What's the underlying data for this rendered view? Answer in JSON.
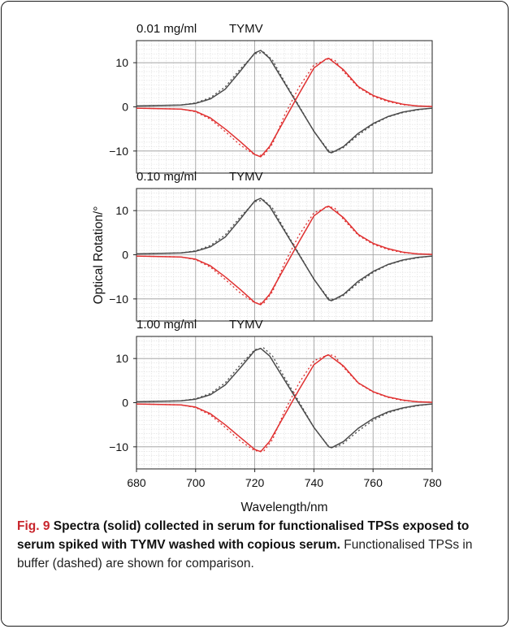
{
  "chart_data": {
    "type": "line",
    "ylabel": "Optical Rotation/°",
    "xlabel": "Wavelength/nm",
    "xlim": [
      680,
      780
    ],
    "xticks": [
      680,
      700,
      720,
      740,
      760,
      780
    ],
    "ylim": [
      -15,
      15
    ],
    "yticks": [
      10,
      0,
      -10
    ],
    "grid": true,
    "panels": [
      {
        "label": "0.01 mg/ml",
        "virus": "TYMV",
        "series": [
          {
            "color": "#4a4a4a",
            "style": "solid",
            "x": [
              680,
              695,
              700,
              705,
              710,
              715,
              720,
              722,
              725,
              730,
              735,
              740,
              745,
              746,
              750,
              755,
              760,
              765,
              770,
              775,
              780
            ],
            "y": [
              0.2,
              0.4,
              0.8,
              1.8,
              4.0,
              8.0,
              12.2,
              12.8,
              11.0,
              5.5,
              0.0,
              -5.5,
              -10.2,
              -10.4,
              -9.0,
              -6.0,
              -3.8,
              -2.2,
              -1.2,
              -0.6,
              -0.3
            ]
          },
          {
            "color": "#4a4a4a",
            "style": "dashed",
            "x": [
              680,
              695,
              700,
              705,
              710,
              715,
              720,
              723,
              726,
              730,
              735,
              740,
              745,
              747,
              750,
              755,
              760,
              765,
              770,
              775,
              780
            ],
            "y": [
              0.2,
              0.4,
              0.9,
              2.1,
              4.5,
              8.5,
              12.0,
              12.4,
              10.6,
              5.8,
              0.2,
              -5.6,
              -9.9,
              -10.2,
              -9.2,
              -6.4,
              -4.0,
              -2.3,
              -1.3,
              -0.7,
              -0.3
            ]
          },
          {
            "color": "#e03030",
            "style": "solid",
            "x": [
              680,
              695,
              700,
              705,
              710,
              715,
              720,
              722,
              725,
              730,
              735,
              740,
              744,
              745,
              750,
              755,
              760,
              765,
              770,
              775,
              780
            ],
            "y": [
              -0.3,
              -0.5,
              -1.0,
              -2.5,
              -5.0,
              -7.8,
              -10.8,
              -11.3,
              -9.0,
              -3.0,
              3.0,
              8.8,
              10.8,
              11.0,
              8.4,
              4.6,
              2.6,
              1.4,
              0.6,
              0.2,
              0.1
            ]
          },
          {
            "color": "#e03030",
            "style": "dashed",
            "x": [
              680,
              695,
              700,
              705,
              710,
              715,
              720,
              723,
              726,
              730,
              735,
              740,
              745,
              747,
              750,
              755,
              760,
              765,
              770,
              775,
              780
            ],
            "y": [
              -0.3,
              -0.5,
              -1.1,
              -2.8,
              -5.6,
              -8.6,
              -10.9,
              -11.0,
              -8.4,
              -2.0,
              4.5,
              9.5,
              10.9,
              10.6,
              8.0,
              4.4,
              2.4,
              1.2,
              0.5,
              0.2,
              0.1
            ]
          }
        ]
      },
      {
        "label": "0.10 mg/ml",
        "virus": "TYMV",
        "series": [
          {
            "color": "#4a4a4a",
            "style": "solid",
            "x": [
              680,
              695,
              700,
              705,
              710,
              715,
              720,
              722,
              725,
              730,
              735,
              740,
              745,
              746,
              750,
              755,
              760,
              765,
              770,
              775,
              780
            ],
            "y": [
              0.2,
              0.4,
              0.8,
              1.8,
              4.0,
              8.0,
              12.2,
              12.8,
              11.0,
              5.5,
              0.0,
              -5.5,
              -10.2,
              -10.4,
              -9.0,
              -6.0,
              -3.8,
              -2.2,
              -1.2,
              -0.6,
              -0.3
            ]
          },
          {
            "color": "#4a4a4a",
            "style": "dashed",
            "x": [
              680,
              695,
              700,
              705,
              710,
              715,
              720,
              723,
              726,
              730,
              735,
              740,
              745,
              747,
              750,
              755,
              760,
              765,
              770,
              775,
              780
            ],
            "y": [
              0.2,
              0.4,
              0.9,
              2.1,
              4.5,
              8.5,
              12.0,
              12.4,
              10.6,
              5.8,
              0.2,
              -5.6,
              -9.9,
              -10.2,
              -9.2,
              -6.4,
              -4.0,
              -2.3,
              -1.3,
              -0.7,
              -0.3
            ]
          },
          {
            "color": "#e03030",
            "style": "solid",
            "x": [
              680,
              695,
              700,
              705,
              710,
              715,
              720,
              722,
              725,
              730,
              735,
              740,
              744,
              745,
              750,
              755,
              760,
              765,
              770,
              775,
              780
            ],
            "y": [
              -0.3,
              -0.5,
              -1.0,
              -2.5,
              -5.0,
              -7.8,
              -10.8,
              -11.3,
              -9.0,
              -3.0,
              3.0,
              8.8,
              10.8,
              11.0,
              8.4,
              4.6,
              2.6,
              1.4,
              0.6,
              0.2,
              0.1
            ]
          },
          {
            "color": "#e03030",
            "style": "dashed",
            "x": [
              680,
              695,
              700,
              705,
              710,
              715,
              720,
              723,
              726,
              730,
              735,
              740,
              745,
              747,
              750,
              755,
              760,
              765,
              770,
              775,
              780
            ],
            "y": [
              -0.3,
              -0.5,
              -1.1,
              -2.8,
              -5.6,
              -8.6,
              -10.9,
              -11.0,
              -8.4,
              -2.0,
              4.5,
              9.5,
              10.9,
              10.6,
              8.0,
              4.4,
              2.4,
              1.2,
              0.5,
              0.2,
              0.1
            ]
          }
        ]
      },
      {
        "label": "1.00 mg/ml",
        "virus": "TYMV",
        "series": [
          {
            "color": "#4a4a4a",
            "style": "solid",
            "x": [
              680,
              695,
              700,
              705,
              710,
              715,
              720,
              722,
              725,
              730,
              735,
              740,
              745,
              746,
              750,
              755,
              760,
              765,
              770,
              775,
              780
            ],
            "y": [
              0.2,
              0.4,
              0.8,
              1.8,
              4.0,
              7.8,
              11.8,
              12.3,
              10.6,
              5.2,
              -0.2,
              -5.6,
              -10.0,
              -10.2,
              -8.8,
              -5.8,
              -3.6,
              -2.1,
              -1.2,
              -0.6,
              -0.3
            ]
          },
          {
            "color": "#4a4a4a",
            "style": "dashed",
            "x": [
              680,
              695,
              700,
              705,
              710,
              715,
              720,
              723,
              726,
              730,
              735,
              740,
              745,
              747,
              750,
              755,
              760,
              765,
              770,
              775,
              780
            ],
            "y": [
              0.2,
              0.4,
              0.9,
              2.1,
              4.5,
              8.5,
              12.0,
              12.4,
              10.6,
              5.8,
              0.2,
              -5.6,
              -9.9,
              -10.2,
              -9.2,
              -6.4,
              -4.0,
              -2.3,
              -1.3,
              -0.7,
              -0.3
            ]
          },
          {
            "color": "#e03030",
            "style": "solid",
            "x": [
              680,
              695,
              700,
              705,
              710,
              715,
              720,
              722,
              725,
              730,
              735,
              740,
              744,
              745,
              750,
              755,
              760,
              765,
              770,
              775,
              780
            ],
            "y": [
              -0.3,
              -0.5,
              -1.0,
              -2.5,
              -5.0,
              -7.8,
              -10.6,
              -11.1,
              -8.8,
              -2.9,
              3.0,
              8.6,
              10.6,
              10.8,
              8.3,
              4.5,
              2.5,
              1.3,
              0.6,
              0.2,
              0.1
            ]
          },
          {
            "color": "#e03030",
            "style": "dashed",
            "x": [
              680,
              695,
              700,
              705,
              710,
              715,
              720,
              723,
              726,
              730,
              735,
              740,
              745,
              747,
              750,
              755,
              760,
              765,
              770,
              775,
              780
            ],
            "y": [
              -0.3,
              -0.5,
              -1.1,
              -2.8,
              -5.6,
              -8.6,
              -10.9,
              -11.0,
              -8.4,
              -2.0,
              4.5,
              9.5,
              10.9,
              10.6,
              8.0,
              4.4,
              2.4,
              1.2,
              0.5,
              0.2,
              0.1
            ]
          }
        ]
      }
    ]
  },
  "caption": {
    "bold": "Fig. 9",
    "bold_rest": "Spectra (solid) collected in serum for functionalised TPSs exposed to serum spiked with TYMV washed with copious serum.",
    "plain": "Functionalised TPSs in buffer (dashed) are shown for comparison."
  }
}
